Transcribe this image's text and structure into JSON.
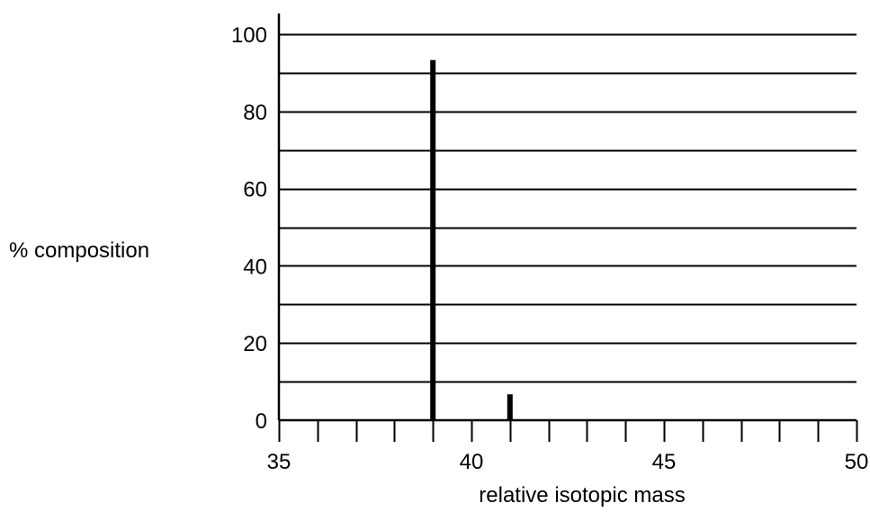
{
  "chart_data": {
    "type": "bar",
    "title": "",
    "xlabel": "relative isotopic mass",
    "ylabel": "% composition",
    "xlim": [
      35,
      50
    ],
    "ylim": [
      0,
      100
    ],
    "x_ticks": [
      "35",
      "40",
      "45",
      "50"
    ],
    "y_ticks": [
      "0",
      "20",
      "40",
      "60",
      "80",
      "100"
    ],
    "x_minor_step": 1,
    "gridlines_y_step": 10,
    "grid": "horizontal",
    "bar_color": "#000000",
    "series": [
      {
        "x": [
          39,
          41
        ],
        "values": [
          93.3,
          6.7
        ]
      }
    ]
  }
}
